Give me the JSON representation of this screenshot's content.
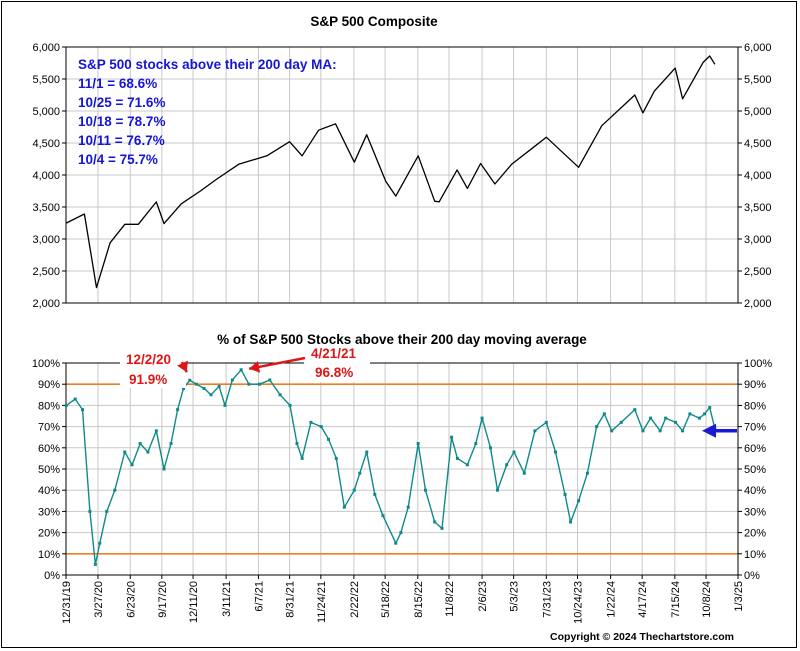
{
  "copyright": "Copyright © 2024 Thechartstore.com",
  "colors": {
    "price_line": "#000000",
    "breadth_line": "#0f8a8a",
    "threshold_line": "#f07d1e",
    "annotation_blue": "#1515d6",
    "annotation_red": "#e01616",
    "arrow_blue": "#1a1ad6"
  },
  "chart_data": [
    {
      "type": "line",
      "title": "S&P 500 Composite",
      "ylim": [
        2000,
        6000
      ],
      "yticks": [
        "2,000",
        "2,500",
        "3,000",
        "3,500",
        "4,000",
        "4,500",
        "5,000",
        "5,500",
        "6,000"
      ],
      "ytick_values": [
        2000,
        2500,
        3000,
        3500,
        4000,
        4500,
        5000,
        5500,
        6000
      ],
      "grid": true,
      "annotation_lines": [
        "S&P 500 stocks above their 200 day MA:",
        "11/1 = 68.6%",
        "10/25 = 71.6%",
        "10/18 = 78.7%",
        "10/11 = 76.7%",
        "10/4 = 75.7%"
      ],
      "series": [
        {
          "x": [
            "2020-01-01",
            "2020-02-19",
            "2020-03-23",
            "2020-04-29",
            "2020-06-08",
            "2020-07-15",
            "2020-09-02",
            "2020-09-23",
            "2020-11-09",
            "2020-12-31",
            "2021-02-12",
            "2021-04-15",
            "2021-06-30",
            "2021-08-31",
            "2021-10-04",
            "2021-11-18",
            "2022-01-03",
            "2022-02-23",
            "2022-03-29",
            "2022-05-20",
            "2022-06-16",
            "2022-08-16",
            "2022-09-30",
            "2022-10-12",
            "2022-11-30",
            "2022-12-28",
            "2023-02-02",
            "2023-03-13",
            "2023-04-28",
            "2023-06-30",
            "2023-07-31",
            "2023-10-27",
            "2023-12-29",
            "2024-03-28",
            "2024-04-19",
            "2024-05-20",
            "2024-07-16",
            "2024-08-05",
            "2024-09-30",
            "2024-10-18",
            "2024-11-01"
          ],
          "values": [
            3250,
            3390,
            2240,
            2940,
            3230,
            3230,
            3580,
            3240,
            3550,
            3750,
            3930,
            4170,
            4300,
            4520,
            4300,
            4700,
            4800,
            4200,
            4630,
            3900,
            3670,
            4300,
            3590,
            3580,
            4080,
            3790,
            4180,
            3860,
            4170,
            4450,
            4590,
            4120,
            4770,
            5250,
            4970,
            5310,
            5670,
            5190,
            5760,
            5860,
            5730
          ]
        }
      ]
    },
    {
      "type": "line",
      "title": "% of S&P 500 Stocks above their 200 day moving average",
      "ylim": [
        0,
        100
      ],
      "yticks": [
        "0%",
        "10%",
        "20%",
        "30%",
        "40%",
        "50%",
        "60%",
        "70%",
        "80%",
        "90%",
        "100%"
      ],
      "ytick_values": [
        0,
        10,
        20,
        30,
        40,
        50,
        60,
        70,
        80,
        90,
        100
      ],
      "xticks": [
        "12/31/19",
        "3/27/20",
        "6/23/20",
        "9/17/20",
        "12/11/20",
        "3/11/21",
        "6/7/21",
        "8/31/21",
        "11/24/21",
        "2/22/22",
        "5/18/22",
        "8/15/22",
        "11/8/22",
        "2/6/23",
        "5/3/23",
        "7/31/23",
        "10/24/23",
        "1/22/24",
        "4/17/24",
        "7/15/24",
        "10/8/24",
        "1/3/25"
      ],
      "xtick_dates": [
        "2019-12-31",
        "2020-03-27",
        "2020-06-23",
        "2020-09-17",
        "2020-12-11",
        "2021-03-11",
        "2021-06-07",
        "2021-08-31",
        "2021-11-24",
        "2022-02-22",
        "2022-05-18",
        "2022-08-15",
        "2022-11-08",
        "2023-02-06",
        "2023-05-03",
        "2023-07-31",
        "2023-10-24",
        "2024-01-22",
        "2024-04-17",
        "2024-07-15",
        "2024-10-08",
        "2025-01-03"
      ],
      "grid": true,
      "thresholds": [
        10,
        90
      ],
      "annotations": [
        {
          "date_label": "12/2/20",
          "value_label": "91.9%",
          "x": "2020-12-02",
          "y": 91.9
        },
        {
          "date_label": "4/21/21",
          "value_label": "96.8%",
          "x": "2021-04-21",
          "y": 96.8
        }
      ],
      "series": [
        {
          "x": [
            "2020-01-01",
            "2020-01-25",
            "2020-02-14",
            "2020-03-05",
            "2020-03-20",
            "2020-04-01",
            "2020-04-20",
            "2020-05-12",
            "2020-06-08",
            "2020-06-28",
            "2020-07-20",
            "2020-08-10",
            "2020-09-02",
            "2020-09-23",
            "2020-10-12",
            "2020-10-30",
            "2020-11-15",
            "2020-12-02",
            "2020-12-20",
            "2021-01-10",
            "2021-01-29",
            "2021-02-20",
            "2021-03-08",
            "2021-03-28",
            "2021-04-21",
            "2021-05-12",
            "2021-06-10",
            "2021-07-08",
            "2021-08-05",
            "2021-09-01",
            "2021-09-20",
            "2021-10-04",
            "2021-10-28",
            "2021-11-25",
            "2021-12-15",
            "2022-01-05",
            "2022-01-27",
            "2022-02-23",
            "2022-03-10",
            "2022-03-29",
            "2022-04-20",
            "2022-05-12",
            "2022-06-16",
            "2022-06-30",
            "2022-07-20",
            "2022-08-16",
            "2022-09-05",
            "2022-09-30",
            "2022-10-20",
            "2022-11-15",
            "2022-12-01",
            "2022-12-28",
            "2023-01-20",
            "2023-02-06",
            "2023-03-01",
            "2023-03-20",
            "2023-04-14",
            "2023-05-04",
            "2023-06-01",
            "2023-06-30",
            "2023-07-31",
            "2023-08-25",
            "2023-09-20",
            "2023-10-05",
            "2023-10-27",
            "2023-11-20",
            "2023-12-15",
            "2024-01-05",
            "2024-01-25",
            "2024-02-20",
            "2024-03-28",
            "2024-04-19",
            "2024-05-10",
            "2024-06-05",
            "2024-06-20",
            "2024-07-17",
            "2024-08-05",
            "2024-08-25",
            "2024-09-20",
            "2024-10-04",
            "2024-10-18",
            "2024-11-01"
          ],
          "values": [
            80,
            83,
            78,
            30,
            5,
            15,
            30,
            40,
            58,
            52,
            62,
            58,
            68,
            50,
            62,
            78,
            88,
            91.9,
            90,
            88,
            85,
            89,
            80,
            92,
            96.8,
            90,
            90,
            92,
            85,
            80,
            62,
            55,
            72,
            70,
            64,
            55,
            32,
            40,
            48,
            58,
            38,
            28,
            15,
            20,
            32,
            62,
            40,
            25,
            22,
            65,
            55,
            52,
            62,
            74,
            60,
            40,
            52,
            58,
            48,
            68,
            72,
            58,
            38,
            25,
            35,
            48,
            70,
            76,
            68,
            72,
            78,
            68,
            74,
            68,
            74,
            72,
            68,
            76,
            74,
            76,
            79,
            69
          ]
        }
      ]
    }
  ]
}
